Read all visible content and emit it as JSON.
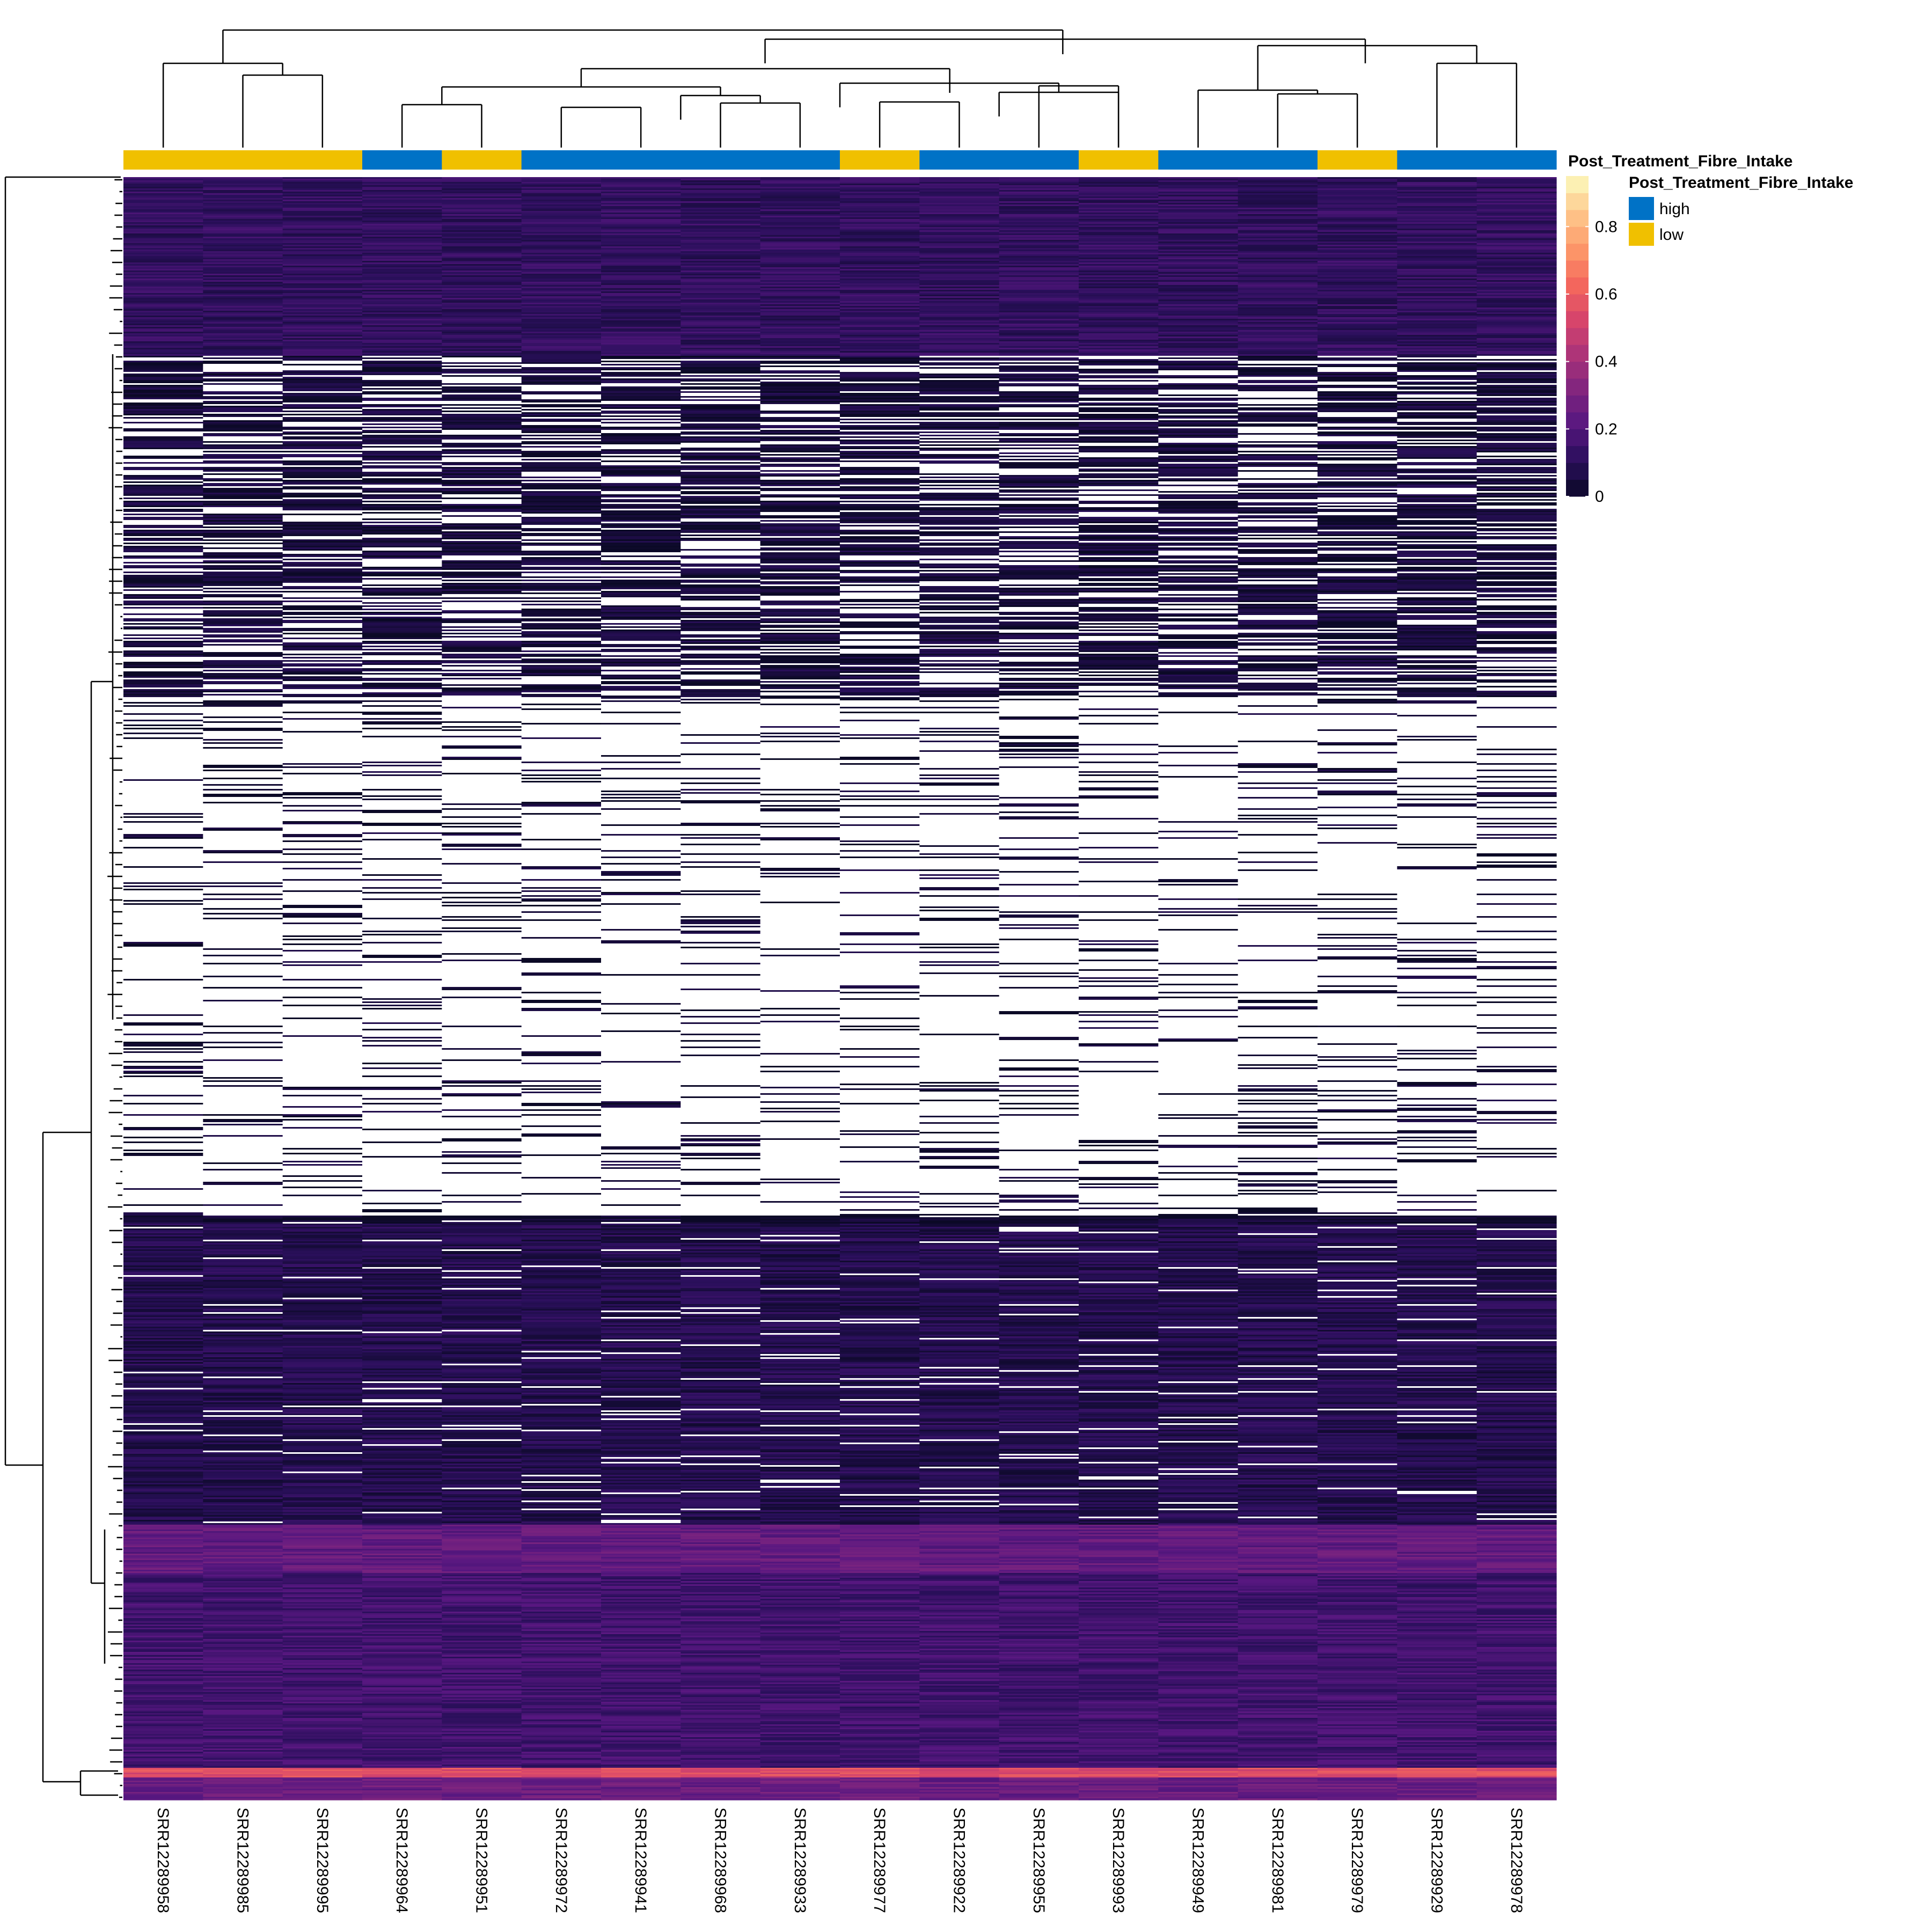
{
  "chart_data": {
    "type": "heatmap",
    "title": "",
    "xlabel": "",
    "ylabel": "",
    "columns": [
      "SRR12289958",
      "SRR12289985",
      "SRR12289995",
      "SRR12289964",
      "SRR12289951",
      "SRR12289972",
      "SRR12289941",
      "SRR12289968",
      "SRR12289933",
      "SRR12289977",
      "SRR12289922",
      "SRR12289955",
      "SRR12289993",
      "SRR12289949",
      "SRR12289981",
      "SRR12289979",
      "SRR12289929",
      "SRR12289978"
    ],
    "annotation": {
      "title": "Post_Treatment_Fibre_Intake",
      "levels": [
        {
          "name": "high",
          "color": "#0072c6"
        },
        {
          "name": "low",
          "color": "#f0c000"
        }
      ],
      "values": [
        "low",
        "low",
        "low",
        "high",
        "low",
        "high",
        "high",
        "high",
        "high",
        "low",
        "high",
        "high",
        "low",
        "high",
        "high",
        "low",
        "high",
        "high"
      ]
    },
    "colorbar": {
      "range": [
        0,
        0.95
      ],
      "ticks": [
        {
          "value": 0,
          "label": "0"
        },
        {
          "value": 0.2,
          "label": "0.2"
        },
        {
          "value": 0.4,
          "label": "0.4"
        },
        {
          "value": 0.6,
          "label": "0.6"
        },
        {
          "value": 0.8,
          "label": "0.8"
        }
      ],
      "palette": [
        "#0b0926",
        "#2a0f5b",
        "#571780",
        "#80257f",
        "#ad3378",
        "#d8466b",
        "#f5695c",
        "#fd9a6a",
        "#fec88c",
        "#fcfdbf"
      ],
      "missing_color": "#ffffff"
    },
    "row_blocks": [
      {
        "from": 0,
        "to": 0.11,
        "level": 0.12,
        "missing": 0.0
      },
      {
        "from": 0.11,
        "to": 0.32,
        "level": 0.04,
        "missing": 0.35
      },
      {
        "from": 0.32,
        "to": 0.64,
        "level": 0.02,
        "missing": 0.82
      },
      {
        "from": 0.64,
        "to": 0.645,
        "level": 0.02,
        "missing": 0.05
      },
      {
        "from": 0.645,
        "to": 0.83,
        "level": 0.08,
        "missing": 0.06
      },
      {
        "from": 0.83,
        "to": 0.86,
        "level": 0.24,
        "missing": 0.0
      },
      {
        "from": 0.86,
        "to": 0.98,
        "level": 0.16,
        "missing": 0.0
      },
      {
        "from": 0.98,
        "to": 0.986,
        "level": 0.55,
        "missing": 0.0
      },
      {
        "from": 0.986,
        "to": 1.0,
        "level": 0.26,
        "missing": 0.0
      }
    ],
    "legend": {
      "position": "right"
    }
  }
}
